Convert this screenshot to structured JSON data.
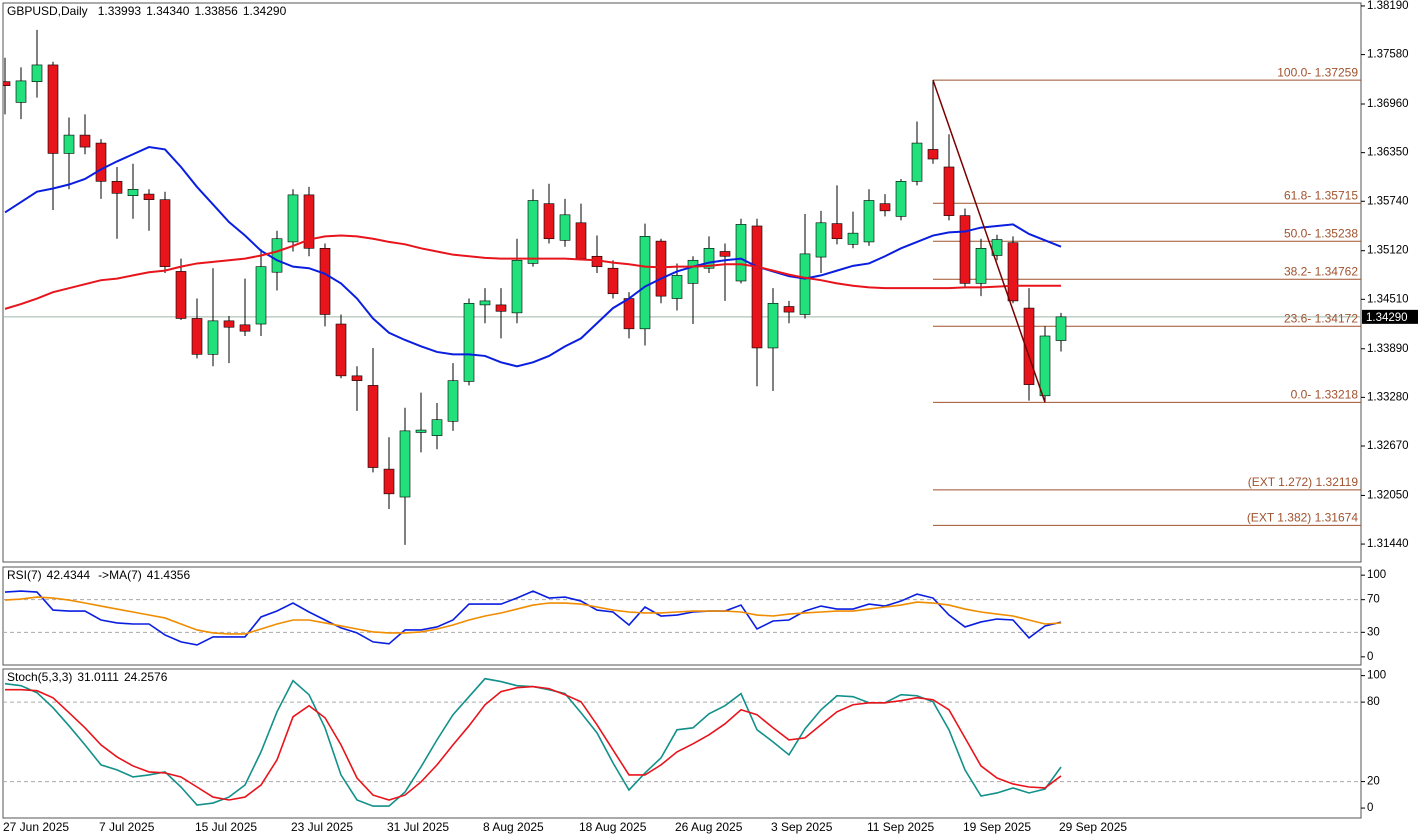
{
  "chart_data": [
    {
      "type": "candlestick",
      "title": "GBPUSD,Daily",
      "header_labels": [
        "1.33993",
        "1.34340",
        "1.33856",
        "1.34290"
      ],
      "x": [
        "27 Jun 2025",
        null,
        null,
        null,
        null,
        null,
        "7 Jul 2025",
        null,
        null,
        null,
        null,
        null,
        "15 Jul 2025",
        null,
        null,
        null,
        null,
        null,
        "23 Jul 2025",
        null,
        null,
        null,
        null,
        null,
        "31 Jul 2025",
        null,
        null,
        null,
        null,
        null,
        "8 Aug 2025",
        null,
        null,
        null,
        null,
        null,
        "18 Aug 2025",
        null,
        null,
        null,
        null,
        null,
        "26 Aug 2025",
        null,
        null,
        null,
        null,
        null,
        "3 Sep 2025",
        null,
        null,
        null,
        null,
        null,
        "11 Sep 2025",
        null,
        null,
        null,
        null,
        null,
        "19 Sep 2025",
        null,
        null,
        null,
        null,
        null,
        "29 Sep 2025"
      ],
      "open": [
        1.3724,
        1.3698,
        1.3724,
        1.3745,
        1.3634,
        1.3657,
        1.3647,
        1.3599,
        1.3581,
        1.3583,
        1.3576,
        1.3486,
        1.3427,
        1.3382,
        1.3424,
        1.3419,
        1.342,
        1.3485,
        1.3523,
        1.3582,
        1.3515,
        1.342,
        1.3355,
        1.3343,
        1.3238,
        1.3203,
        1.3284,
        1.328,
        1.3298,
        1.3348,
        1.3444,
        1.3444,
        1.3434,
        1.3496,
        1.3571,
        1.3525,
        1.3547,
        1.3505,
        1.349,
        1.3452,
        1.3414,
        1.3524,
        1.3452,
        1.3471,
        1.349,
        1.3511,
        1.3474,
        1.3543,
        1.339,
        1.3442,
        1.3432,
        1.3504,
        1.3546,
        1.352,
        1.3523,
        1.3571,
        1.3555,
        1.3599,
        1.3639,
        1.3617,
        1.3556,
        1.3471,
        1.3506,
        1.3522,
        1.344,
        1.333,
        1.33993
      ],
      "high": [
        1.3754,
        1.3742,
        1.3789,
        1.3749,
        1.3679,
        1.3683,
        1.3652,
        1.3617,
        1.3621,
        1.3589,
        1.3586,
        1.3502,
        1.3452,
        1.349,
        1.343,
        1.3477,
        1.3514,
        1.3537,
        1.3589,
        1.3592,
        1.3521,
        1.3432,
        1.3367,
        1.339,
        1.3278,
        1.3315,
        1.3334,
        1.3321,
        1.3371,
        1.3452,
        1.3465,
        1.3465,
        1.3527,
        1.3589,
        1.3596,
        1.3577,
        1.3571,
        1.3531,
        1.35,
        1.346,
        1.3546,
        1.3527,
        1.3496,
        1.3505,
        1.353,
        1.3521,
        1.3552,
        1.3552,
        1.3465,
        1.3449,
        1.3558,
        1.3562,
        1.3594,
        1.3561,
        1.3589,
        1.3583,
        1.3602,
        1.3674,
        1.37259,
        1.3658,
        1.3565,
        1.3527,
        1.3532,
        1.353,
        1.3465,
        1.3417,
        1.3434
      ],
      "low": [
        1.3683,
        1.3677,
        1.3704,
        1.3563,
        1.3589,
        1.3633,
        1.3577,
        1.3527,
        1.3552,
        1.3537,
        1.3484,
        1.3425,
        1.3377,
        1.3367,
        1.3371,
        1.3405,
        1.3405,
        1.3462,
        1.3511,
        1.3505,
        1.3417,
        1.3352,
        1.3311,
        1.3234,
        1.3188,
        1.3143,
        1.3259,
        1.3263,
        1.3286,
        1.3343,
        1.3421,
        1.3402,
        1.3421,
        1.3492,
        1.3521,
        1.3517,
        1.35,
        1.3484,
        1.3452,
        1.3402,
        1.3393,
        1.3446,
        1.3437,
        1.342,
        1.3484,
        1.3449,
        1.3471,
        1.3342,
        1.3336,
        1.3421,
        1.3427,
        1.3484,
        1.352,
        1.3515,
        1.3518,
        1.3555,
        1.355,
        1.3594,
        1.3621,
        1.355,
        1.3465,
        1.3455,
        1.35,
        1.3446,
        1.3324,
        1.33218,
        1.33856
      ],
      "close": [
        1.3719,
        1.3725,
        1.3745,
        1.3634,
        1.3657,
        1.3642,
        1.3599,
        1.3584,
        1.3589,
        1.3576,
        1.3492,
        1.3427,
        1.3382,
        1.3424,
        1.3416,
        1.3411,
        1.3492,
        1.3527,
        1.3582,
        1.3515,
        1.3432,
        1.3355,
        1.3349,
        1.324,
        1.3207,
        1.3286,
        1.3287,
        1.33,
        1.3349,
        1.3446,
        1.3449,
        1.3436,
        1.35,
        1.3575,
        1.3527,
        1.3557,
        1.3502,
        1.3492,
        1.3458,
        1.3414,
        1.353,
        1.3455,
        1.3481,
        1.35,
        1.3515,
        1.3505,
        1.3545,
        1.339,
        1.3446,
        1.3435,
        1.3508,
        1.3547,
        1.3527,
        1.3534,
        1.3575,
        1.3562,
        1.3599,
        1.3647,
        1.3627,
        1.3556,
        1.3471,
        1.3515,
        1.3526,
        1.3449,
        1.3344,
        1.3405,
        1.3429
      ],
      "up_color": "#22e07c",
      "down_color": "#e8141c",
      "ma": [
        {
          "color": "#0a1ee0",
          "values": [
            1.356,
            1.3573,
            1.3586,
            1.359,
            1.3595,
            1.3602,
            1.3614,
            1.3624,
            1.3633,
            1.3642,
            1.3639,
            1.3617,
            1.3592,
            1.357,
            1.3548,
            1.3531,
            1.3512,
            1.35,
            1.3492,
            1.349,
            1.3483,
            1.3471,
            1.3452,
            1.3427,
            1.3409,
            1.34,
            1.3392,
            1.3385,
            1.3382,
            1.3382,
            1.338,
            1.3372,
            1.3367,
            1.3372,
            1.338,
            1.3392,
            1.3402,
            1.3421,
            1.344,
            1.3452,
            1.3467,
            1.3477,
            1.3486,
            1.3492,
            1.3497,
            1.35,
            1.3502,
            1.3492,
            1.3486,
            1.348,
            1.3477,
            1.3481,
            1.3487,
            1.3493,
            1.3496,
            1.3505,
            1.3515,
            1.3523,
            1.3531,
            1.3535,
            1.3536,
            1.3541,
            1.3543,
            1.3545,
            1.3533,
            1.3525,
            1.3517
          ]
        },
        {
          "color": "#e8141c",
          "values": [
            1.3439,
            1.3445,
            1.3452,
            1.346,
            1.3465,
            1.347,
            1.3475,
            1.3477,
            1.3481,
            1.3485,
            1.3487,
            1.3492,
            1.3496,
            1.3498,
            1.35,
            1.3502,
            1.3506,
            1.3511,
            1.3518,
            1.3526,
            1.353,
            1.3531,
            1.353,
            1.3527,
            1.3523,
            1.352,
            1.3515,
            1.3511,
            1.3507,
            1.3505,
            1.3503,
            1.3502,
            1.3502,
            1.3502,
            1.3502,
            1.3502,
            1.3501,
            1.35,
            1.3497,
            1.3495,
            1.3492,
            1.3491,
            1.3492,
            1.3492,
            1.3493,
            1.3495,
            1.3495,
            1.3492,
            1.3487,
            1.3482,
            1.3478,
            1.3475,
            1.3471,
            1.3468,
            1.3466,
            1.3465,
            1.3465,
            1.3465,
            1.3465,
            1.3465,
            1.3466,
            1.3466,
            1.3467,
            1.3468,
            1.3468,
            1.3468,
            1.3468
          ]
        }
      ],
      "fibo": {
        "color": "#a0522d",
        "trend_color": "#7a0000",
        "levels": [
          {
            "value": 1.37259,
            "label": "100.0- 1.37259"
          },
          {
            "value": 1.35715,
            "label": "61.8- 1.35715"
          },
          {
            "value": 1.35238,
            "label": "50.0- 1.35238"
          },
          {
            "value": 1.34762,
            "label": "38.2- 1.34762"
          },
          {
            "value": 1.34172,
            "label": "23.6- 1.34172"
          },
          {
            "value": 1.33218,
            "label": "0.0- 1.33218"
          },
          {
            "value": 1.32119,
            "label": "(EXT 1.272)  1.32119"
          },
          {
            "value": 1.31674,
            "label": "(EXT 1.382)  1.31674"
          }
        ]
      },
      "ylim": [
        1.31215,
        1.38227
      ],
      "yticks": [
        {
          "value": 1.3819,
          "label": "1.38190"
        },
        {
          "value": 1.3758,
          "label": "1.37580"
        },
        {
          "value": 1.3696,
          "label": "1.36960"
        },
        {
          "value": 1.3635,
          "label": "1.36350"
        },
        {
          "value": 1.3574,
          "label": "1.35740"
        },
        {
          "value": 1.3512,
          "label": "1.35120"
        },
        {
          "value": 1.3451,
          "label": "1.34510"
        },
        {
          "value": 1.3389,
          "label": "1.33890"
        },
        {
          "value": 1.3328,
          "label": "1.33280"
        },
        {
          "value": 1.3267,
          "label": "1.32670"
        },
        {
          "value": 1.3205,
          "label": "1.32050"
        },
        {
          "value": 1.3144,
          "label": "1.31440"
        }
      ]
    },
    {
      "type": "line",
      "series": [
        {
          "name": "RSI(7)",
          "color": "#0a1ee0",
          "values": [
            79.3,
            80.5,
            79.3,
            57.3,
            56.1,
            56.1,
            45.1,
            41.5,
            40.2,
            40.2,
            26.8,
            18.3,
            14.6,
            24.4,
            24.4,
            24.4,
            48.8,
            56.1,
            65.9,
            54.9,
            45.1,
            35.4,
            29.3,
            18.3,
            15.9,
            32.9,
            32.9,
            36.6,
            45.1,
            64.6,
            64.6,
            64.6,
            72.0,
            80.5,
            72.0,
            73.2,
            68.3,
            57.3,
            54.9,
            39.0,
            61.0,
            50.0,
            51.2,
            54.9,
            56.1,
            56.1,
            63.4,
            34.1,
            43.9,
            45.1,
            56.1,
            62.2,
            58.5,
            58.5,
            64.6,
            62.2,
            68.3,
            76.8,
            72.0,
            51.2,
            36.6,
            42.7,
            46.3,
            45.1,
            23.2,
            37.8,
            42.4344
          ]
        },
        {
          "name": "->MA(7)",
          "color": "#f08c00",
          "values": [
            69.5,
            70.7,
            73.2,
            72.0,
            69.5,
            65.9,
            62.2,
            58.5,
            54.9,
            51.2,
            47.6,
            40.2,
            32.9,
            29.3,
            28.0,
            28.0,
            34.1,
            40.2,
            45.1,
            45.1,
            41.5,
            37.8,
            34.1,
            30.5,
            29.3,
            29.3,
            30.5,
            34.1,
            39.0,
            45.1,
            50.0,
            53.7,
            58.5,
            63.4,
            65.9,
            65.9,
            64.6,
            61.0,
            57.3,
            54.9,
            53.7,
            53.7,
            54.9,
            56.1,
            56.1,
            56.1,
            54.9,
            51.2,
            50.0,
            52.4,
            53.7,
            54.9,
            56.1,
            56.1,
            58.5,
            61.0,
            63.4,
            67.1,
            65.9,
            63.4,
            58.5,
            54.9,
            52.4,
            50.0,
            45.1,
            40.2,
            41.4356
          ]
        }
      ],
      "ylim": [
        -10,
        110
      ],
      "yticks": [
        100,
        70,
        30,
        0
      ],
      "levels": [
        70,
        30
      ]
    },
    {
      "type": "line",
      "series": [
        {
          "name": "Stoch(5,3,3)",
          "color": "#12908a",
          "values": [
            93.9,
            92.4,
            87.1,
            75.8,
            62.1,
            47.7,
            32.6,
            28.8,
            23.5,
            25.0,
            27.3,
            15.9,
            2.3,
            3.8,
            8.3,
            17.4,
            42.4,
            72.7,
            96.2,
            85.6,
            60.6,
            25.0,
            6.1,
            1.5,
            1.5,
            12.1,
            31.1,
            51.5,
            70.5,
            84.1,
            97.7,
            95.5,
            92.4,
            91.7,
            89.4,
            86.4,
            72.0,
            56.8,
            34.1,
            13.6,
            26.5,
            37.9,
            59.1,
            60.6,
            71.2,
            77.3,
            86.4,
            59.1,
            50.0,
            40.2,
            59.8,
            74.2,
            84.8,
            84.1,
            79.5,
            79.5,
            85.6,
            84.8,
            80.3,
            59.1,
            28.8,
            9.1,
            11.4,
            15.2,
            11.4,
            14.4,
            31.0111
          ]
        },
        {
          "color": "#e8141c",
          "values": [
            89.4,
            89.4,
            88.6,
            83.3,
            72.0,
            60.6,
            47.7,
            38.6,
            31.8,
            27.3,
            26.5,
            23.5,
            15.9,
            8.3,
            6.1,
            8.3,
            17.4,
            36.4,
            68.9,
            77.3,
            68.2,
            47.7,
            22.7,
            9.8,
            6.1,
            9.8,
            19.7,
            32.6,
            47.7,
            62.1,
            78.0,
            87.9,
            90.9,
            91.7,
            90.2,
            85.6,
            80.3,
            62.9,
            43.9,
            25.0,
            25.0,
            32.6,
            42.4,
            48.5,
            55.3,
            63.6,
            74.2,
            70.5,
            60.6,
            51.5,
            53.0,
            62.9,
            72.7,
            78.0,
            79.5,
            79.5,
            81.1,
            83.3,
            81.8,
            74.2,
            53.0,
            31.8,
            22.7,
            18.2,
            15.9,
            15.2,
            24.2576
          ]
        }
      ],
      "ylim": [
        -7.5,
        105
      ],
      "yticks": [
        100,
        80,
        20,
        0
      ],
      "levels": [
        80,
        20
      ]
    }
  ]
}
